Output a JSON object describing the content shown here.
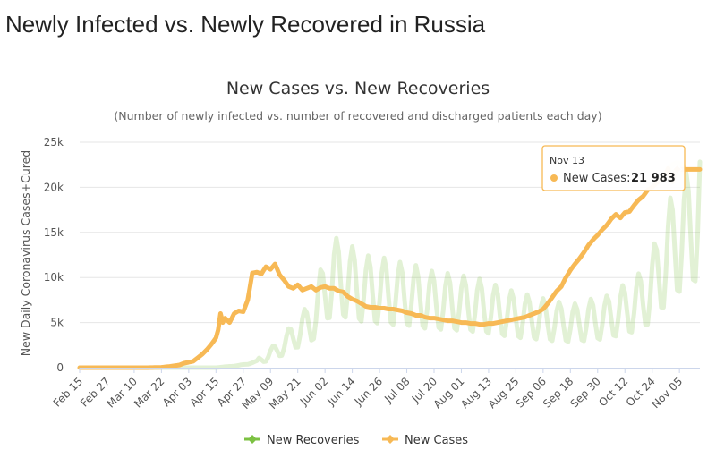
{
  "page": {
    "title": "Newly Infected vs. Newly Recovered in Russia"
  },
  "chart_data": {
    "type": "line",
    "title": "New Cases vs. New Recoveries",
    "subtitle": "(Number of newly infected vs. number of recovered and discharged patients each day)",
    "ylabel": "New Daily Coronavirus Cases+Cured",
    "xlabel": "",
    "ylim": [
      0,
      25000
    ],
    "y_ticks": [
      {
        "value": 0,
        "label": "0"
      },
      {
        "value": 5000,
        "label": "5k"
      },
      {
        "value": 10000,
        "label": "10k"
      },
      {
        "value": 15000,
        "label": "15k"
      },
      {
        "value": 20000,
        "label": "20k"
      },
      {
        "value": 25000,
        "label": "25k"
      }
    ],
    "grid": true,
    "legend_position": "bottom-center",
    "x_tick_labels": [
      "Feb 15",
      "Feb 27",
      "Mar 10",
      "Mar 22",
      "Apr 03",
      "Apr 15",
      "Apr 27",
      "May 09",
      "May 21",
      "Jun 02",
      "Jun 14",
      "Jun 26",
      "Jul 08",
      "Jul 20",
      "Aug 01",
      "Aug 13",
      "Aug 25",
      "Sep 06",
      "Sep 18",
      "Sep 30",
      "Oct 12",
      "Oct 24",
      "Nov 05"
    ],
    "series": [
      {
        "name": "New Recoveries",
        "color": "#7cc142",
        "opacity": 0.22,
        "anchors": [
          [
            0,
            0
          ],
          [
            60,
            0
          ],
          [
            66,
            150
          ],
          [
            70,
            250
          ],
          [
            74,
            400
          ],
          [
            78,
            700
          ],
          [
            82,
            1200
          ],
          [
            86,
            1800
          ],
          [
            90,
            2500
          ],
          [
            94,
            3500
          ],
          [
            98,
            4300
          ],
          [
            102,
            5000
          ],
          [
            104,
            6000
          ],
          [
            106,
            7500
          ],
          [
            108,
            8500
          ],
          [
            110,
            9500
          ],
          [
            112,
            10000
          ],
          [
            118,
            9500
          ],
          [
            126,
            8600
          ],
          [
            134,
            8400
          ],
          [
            140,
            8100
          ],
          [
            146,
            8000
          ],
          [
            152,
            7500
          ],
          [
            158,
            7300
          ],
          [
            164,
            7200
          ],
          [
            170,
            7000
          ],
          [
            176,
            6800
          ],
          [
            182,
            6400
          ],
          [
            188,
            6000
          ],
          [
            194,
            5700
          ],
          [
            200,
            5500
          ],
          [
            206,
            5200
          ],
          [
            212,
            5000
          ],
          [
            218,
            4900
          ],
          [
            222,
            5100
          ],
          [
            226,
            5300
          ],
          [
            232,
            5500
          ],
          [
            236,
            6000
          ],
          [
            242,
            6600
          ],
          [
            248,
            7500
          ],
          [
            252,
            9000
          ],
          [
            256,
            11000
          ],
          [
            260,
            13000
          ],
          [
            264,
            14500
          ],
          [
            268,
            15000
          ],
          [
            272,
            17000
          ],
          [
            273,
            18200
          ]
        ],
        "weekly_swing": 0.45
      },
      {
        "name": "New Cases",
        "color": "#f7b955",
        "anchors": [
          [
            0,
            0
          ],
          [
            30,
            0
          ],
          [
            36,
            40
          ],
          [
            40,
            150
          ],
          [
            44,
            300
          ],
          [
            46,
            500
          ],
          [
            50,
            700
          ],
          [
            52,
            1100
          ],
          [
            54,
            1500
          ],
          [
            56,
            2000
          ],
          [
            58,
            2600
          ],
          [
            60,
            3300
          ],
          [
            61,
            4200
          ],
          [
            62,
            6000
          ],
          [
            63,
            5000
          ],
          [
            64,
            5500
          ],
          [
            66,
            5000
          ],
          [
            68,
            6000
          ],
          [
            70,
            6300
          ],
          [
            72,
            6200
          ],
          [
            74,
            7500
          ],
          [
            76,
            10500
          ],
          [
            78,
            10600
          ],
          [
            80,
            10400
          ],
          [
            82,
            11200
          ],
          [
            84,
            10900
          ],
          [
            86,
            11500
          ],
          [
            88,
            10300
          ],
          [
            90,
            9700
          ],
          [
            92,
            9000
          ],
          [
            94,
            8800
          ],
          [
            96,
            9200
          ],
          [
            98,
            8600
          ],
          [
            100,
            8800
          ],
          [
            102,
            9000
          ],
          [
            104,
            8600
          ],
          [
            106,
            8900
          ],
          [
            108,
            9000
          ],
          [
            110,
            8800
          ],
          [
            112,
            8800
          ],
          [
            114,
            8500
          ],
          [
            116,
            8400
          ],
          [
            118,
            7900
          ],
          [
            120,
            7600
          ],
          [
            122,
            7400
          ],
          [
            124,
            7100
          ],
          [
            126,
            6800
          ],
          [
            128,
            6700
          ],
          [
            130,
            6700
          ],
          [
            132,
            6600
          ],
          [
            134,
            6600
          ],
          [
            136,
            6500
          ],
          [
            138,
            6500
          ],
          [
            140,
            6400
          ],
          [
            142,
            6300
          ],
          [
            144,
            6100
          ],
          [
            146,
            6000
          ],
          [
            148,
            5800
          ],
          [
            150,
            5800
          ],
          [
            152,
            5600
          ],
          [
            154,
            5500
          ],
          [
            156,
            5500
          ],
          [
            158,
            5400
          ],
          [
            160,
            5300
          ],
          [
            162,
            5200
          ],
          [
            164,
            5200
          ],
          [
            166,
            5100
          ],
          [
            168,
            5000
          ],
          [
            170,
            5000
          ],
          [
            172,
            4900
          ],
          [
            174,
            4900
          ],
          [
            176,
            4800
          ],
          [
            178,
            4800
          ],
          [
            180,
            4900
          ],
          [
            182,
            4900
          ],
          [
            184,
            5000
          ],
          [
            186,
            5100
          ],
          [
            188,
            5200
          ],
          [
            190,
            5300
          ],
          [
            192,
            5400
          ],
          [
            194,
            5500
          ],
          [
            196,
            5600
          ],
          [
            198,
            5800
          ],
          [
            200,
            6000
          ],
          [
            202,
            6200
          ],
          [
            204,
            6500
          ],
          [
            206,
            7100
          ],
          [
            208,
            7800
          ],
          [
            210,
            8500
          ],
          [
            212,
            9000
          ],
          [
            214,
            10000
          ],
          [
            216,
            10800
          ],
          [
            218,
            11500
          ],
          [
            220,
            12100
          ],
          [
            222,
            12800
          ],
          [
            224,
            13600
          ],
          [
            226,
            14200
          ],
          [
            228,
            14700
          ],
          [
            230,
            15300
          ],
          [
            232,
            15800
          ],
          [
            234,
            16500
          ],
          [
            236,
            17000
          ],
          [
            238,
            16600
          ],
          [
            240,
            17200
          ],
          [
            242,
            17300
          ],
          [
            244,
            18000
          ],
          [
            246,
            18600
          ],
          [
            248,
            19000
          ],
          [
            250,
            19700
          ],
          [
            252,
            20000
          ],
          [
            254,
            20500
          ],
          [
            256,
            20900
          ],
          [
            258,
            21500
          ],
          [
            259,
            22100
          ],
          [
            260,
            21100
          ],
          [
            261,
            20600
          ],
          [
            262,
            21800
          ],
          [
            263,
            21983
          ]
        ]
      }
    ],
    "tooltip": {
      "date": "Nov 13",
      "series": "New Cases",
      "label": "New Cases:",
      "value": "21 983",
      "y": 21983
    }
  },
  "legend": {
    "items": [
      {
        "label": "New Recoveries",
        "color": "#7cc142"
      },
      {
        "label": "New Cases",
        "color": "#f7b955"
      }
    ]
  }
}
